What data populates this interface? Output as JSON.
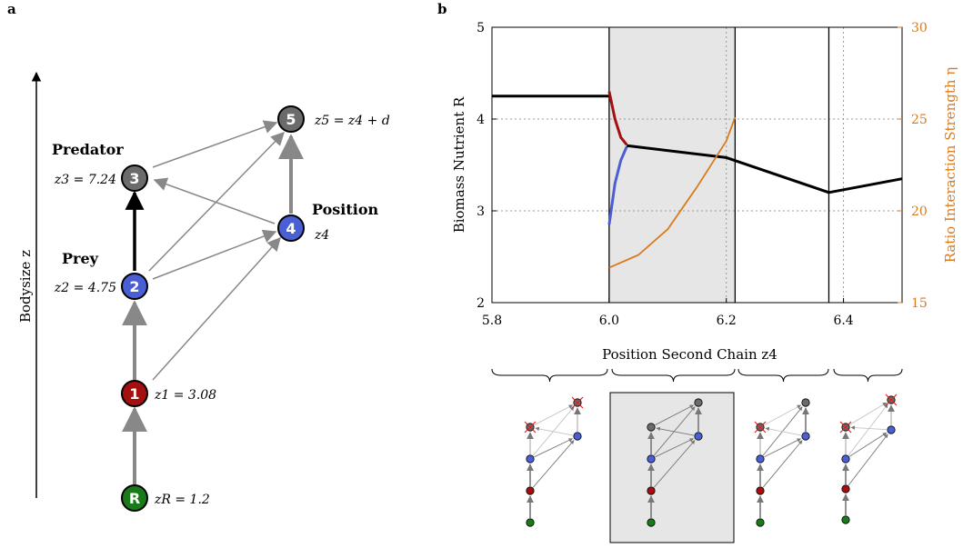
{
  "panel_a": {
    "label": "a",
    "axis_label": "Bodysize z",
    "nodes": [
      {
        "id": "R",
        "label": "R",
        "color": "#1a7a1a",
        "value_label": "zR = 1.2"
      },
      {
        "id": "1",
        "label": "1",
        "color": "#a50f0f",
        "value_label": "z1 = 3.08"
      },
      {
        "id": "2",
        "label": "2",
        "color": "#4a5fd4",
        "value_label": "z2 = 4.75",
        "role": "Prey"
      },
      {
        "id": "3",
        "label": "3",
        "color": "#6b6b6b",
        "value_label": "z3 = 7.24",
        "role": "Predator"
      },
      {
        "id": "4",
        "label": "4",
        "color": "#4a5fd4",
        "value_label": "z4",
        "role": "Position"
      },
      {
        "id": "5",
        "label": "5",
        "color": "#6b6b6b",
        "value_label": "z5 = z4 + d"
      }
    ],
    "edges": [
      {
        "from": "R",
        "to": "1",
        "style": "gray"
      },
      {
        "from": "1",
        "to": "2",
        "style": "gray"
      },
      {
        "from": "2",
        "to": "3",
        "style": "bold"
      },
      {
        "from": "1",
        "to": "4",
        "style": "thin"
      },
      {
        "from": "2",
        "to": "4",
        "style": "thin"
      },
      {
        "from": "2",
        "to": "5",
        "style": "thin"
      },
      {
        "from": "3",
        "to": "5",
        "style": "thin"
      },
      {
        "from": "4",
        "to": "3",
        "style": "thin"
      },
      {
        "from": "4",
        "to": "5",
        "style": "gray"
      }
    ]
  },
  "panel_b": {
    "label": "b",
    "chart_data": {
      "type": "line",
      "xlabel": "Position Second Chain z4",
      "ylabel": "Biomass Nutrient R",
      "y2label": "Ratio Interaction Strength η",
      "xlim": [
        5.8,
        6.5
      ],
      "ylim": [
        2,
        5
      ],
      "y2lim": [
        15,
        30
      ],
      "x_ticks": [
        5.8,
        6.0,
        6.2,
        6.4
      ],
      "y_ticks": [
        2,
        3,
        4,
        5
      ],
      "y2_ticks": [
        15,
        20,
        25,
        30
      ],
      "dashed_gridlines_y": [
        3,
        4
      ],
      "dashed_gridlines_x": [
        6.2,
        6.4
      ],
      "shaded_region": [
        6.0,
        6.215
      ],
      "vertical_lines": [
        6.0,
        6.215,
        6.375
      ],
      "series": [
        {
          "color": "#000000",
          "x": [
            5.8,
            6.0
          ],
          "y": [
            4.25,
            4.25
          ]
        },
        {
          "color": "#a50f0f",
          "x": [
            6.0,
            6.01,
            6.02,
            6.03
          ],
          "y": [
            4.3,
            4.0,
            3.8,
            3.72
          ]
        },
        {
          "color": "#4a5fd4",
          "x": [
            6.0,
            6.01,
            6.02,
            6.03
          ],
          "y": [
            2.85,
            3.3,
            3.55,
            3.7
          ]
        },
        {
          "color": "#000000",
          "x": [
            6.03,
            6.2,
            6.375,
            6.5
          ],
          "y": [
            3.71,
            3.58,
            3.2,
            3.35
          ]
        },
        {
          "color": "#d97a1e",
          "axis": "y2",
          "x": [
            6.0,
            6.05,
            6.1,
            6.15,
            6.2,
            6.215
          ],
          "y": [
            16.9,
            17.6,
            19.0,
            21.3,
            23.8,
            25.1
          ]
        }
      ]
    },
    "mini_networks": [
      {
        "shaded": false,
        "extinct": [
          "3",
          "5"
        ]
      },
      {
        "shaded": true,
        "extinct": []
      },
      {
        "shaded": false,
        "extinct": [
          "3"
        ]
      },
      {
        "shaded": false,
        "extinct": [
          "3",
          "5"
        ]
      }
    ]
  }
}
